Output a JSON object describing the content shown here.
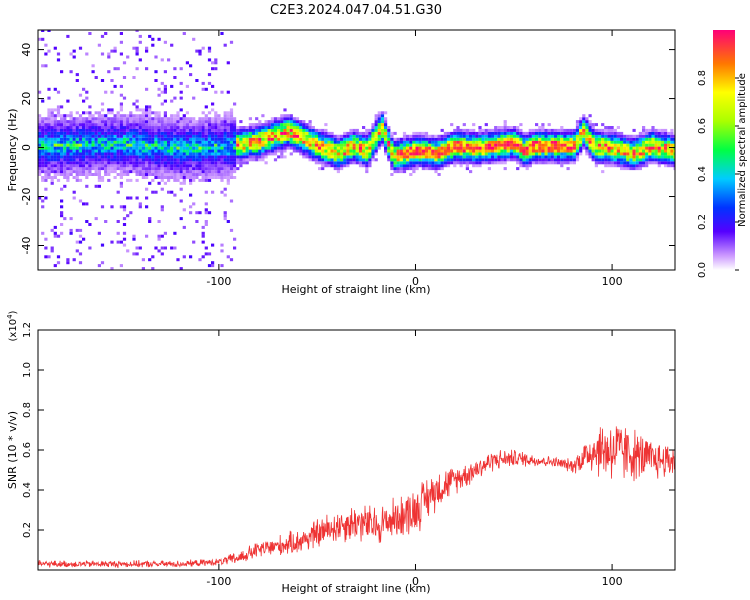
{
  "title": "C2E3.2024.047.04.51.G30",
  "chart_data": [
    {
      "type": "heatmap",
      "xlabel": "Height of straight line (km)",
      "ylabel": "Frequency (Hz)",
      "xlim": [
        -192,
        132
      ],
      "ylim": [
        -50,
        48
      ],
      "xticks": [
        -100,
        0,
        100
      ],
      "yticks": [
        -40,
        -20,
        0,
        20,
        40
      ],
      "colorbar": {
        "label": "Normalized spectral amplitude",
        "range": [
          0.0,
          1.0
        ],
        "ticks": [
          "0.0",
          "0.2",
          "0.4",
          "0.6",
          "0.8"
        ],
        "tick_values": [
          0.0,
          0.2,
          0.4,
          0.6,
          0.8
        ]
      },
      "ridge": {
        "x": [
          -192,
          -150,
          -120,
          -95,
          -80,
          -65,
          -50,
          -40,
          -32,
          -25,
          -18,
          -12,
          0,
          10,
          20,
          30,
          40,
          50,
          55,
          60,
          70,
          80,
          85,
          90,
          100,
          110,
          120,
          132
        ],
        "freq": [
          0,
          1,
          -1,
          0,
          2,
          6,
          0,
          -3,
          0,
          -2,
          8,
          -4,
          -2,
          -3,
          0,
          -1,
          0,
          1,
          -2,
          0,
          0,
          0,
          6,
          0,
          -1,
          -3,
          0,
          -2
        ]
      },
      "noise_region_x": [
        -192,
        -92
      ]
    },
    {
      "type": "line",
      "xlabel": "Height of straight line (km)",
      "ylabel": "SNR (10 * v/v)",
      "yscale_label": "(x10",
      "yscale_exp": "4",
      "yscale_close": ")",
      "xlim": [
        -192,
        132
      ],
      "ylim": [
        0.0,
        1.2
      ],
      "xticks": [
        -100,
        0,
        100
      ],
      "yticks": [
        "0.2",
        "0.4",
        "0.6",
        "0.8",
        "1.0",
        "1.2"
      ],
      "ytick_values": [
        0.2,
        0.4,
        0.6,
        0.8,
        1.0,
        1.2
      ],
      "color": "#ee3333",
      "series": [
        {
          "x": [
            -192,
            -150,
            -120,
            -100,
            -90,
            -80,
            -70,
            -60,
            -50,
            -40,
            -30,
            -20,
            -10,
            0,
            10,
            20,
            30,
            40,
            50,
            60,
            70,
            80,
            90,
            100,
            110,
            120,
            132
          ],
          "values": [
            0.03,
            0.03,
            0.03,
            0.04,
            0.06,
            0.1,
            0.12,
            0.14,
            0.18,
            0.22,
            0.24,
            0.22,
            0.26,
            0.3,
            0.4,
            0.45,
            0.5,
            0.55,
            0.56,
            0.55,
            0.54,
            0.52,
            0.6,
            0.6,
            0.58,
            0.55,
            0.55
          ],
          "spread": [
            0.02,
            0.02,
            0.02,
            0.02,
            0.04,
            0.05,
            0.06,
            0.07,
            0.09,
            0.1,
            0.11,
            0.12,
            0.12,
            0.14,
            0.12,
            0.08,
            0.07,
            0.06,
            0.05,
            0.04,
            0.03,
            0.04,
            0.14,
            0.2,
            0.16,
            0.12,
            0.1
          ]
        }
      ]
    }
  ]
}
